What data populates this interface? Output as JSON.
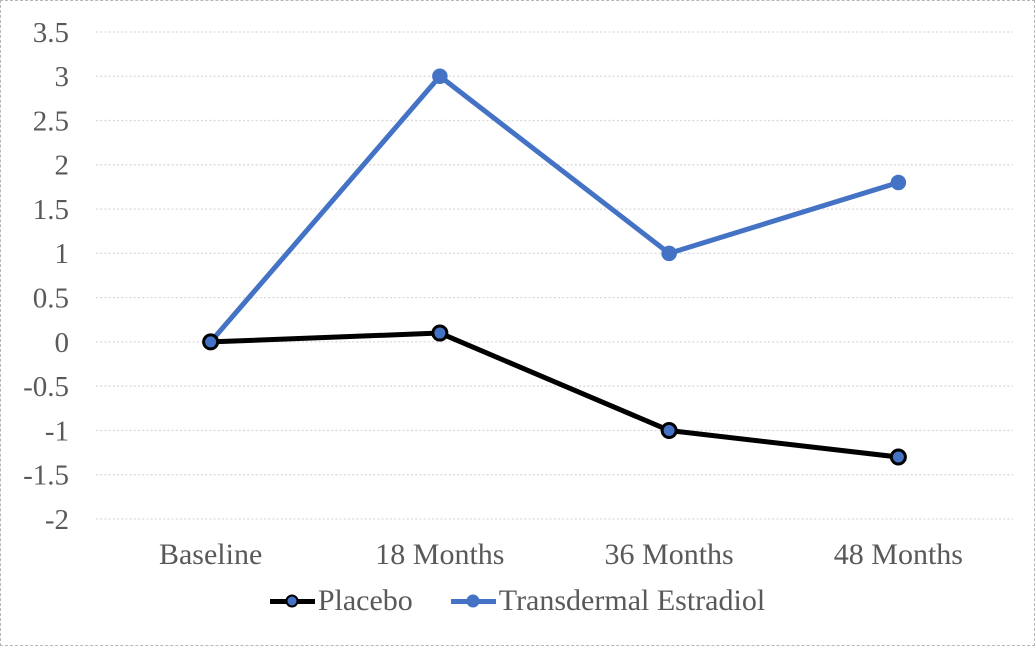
{
  "chart_data": {
    "type": "line",
    "title": "",
    "xlabel": "",
    "ylabel": "",
    "categories": [
      "Baseline",
      "18 Months",
      "36 Months",
      "48 Months"
    ],
    "series": [
      {
        "name": "Placebo",
        "values": [
          0,
          0.1,
          -1,
          -1.3
        ],
        "line_color": "#000000",
        "marker_fill": "#4472C4",
        "marker_stroke": "#000000"
      },
      {
        "name": "Transdermal Estradiol",
        "values": [
          0,
          3,
          1,
          1.8
        ],
        "line_color": "#4472C4",
        "marker_fill": "#4472C4",
        "marker_stroke": "#4472C4"
      }
    ],
    "ylim": [
      -2,
      3.5
    ],
    "ytick_step": 0.5,
    "ytick_labels": [
      "3.5",
      "3",
      "2.5",
      "2",
      "1.5",
      "1",
      "0.5",
      "0",
      "-0.5",
      "-1",
      "-1.5",
      "-2"
    ],
    "grid": true,
    "gridline_color": "#D9D9D9",
    "axis_text_color": "#595959",
    "legend_position": "bottom",
    "plot_background": "#FFFFFF"
  }
}
